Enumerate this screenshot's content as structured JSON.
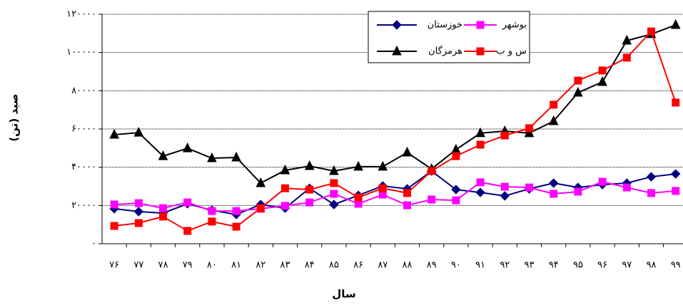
{
  "chart_data": {
    "type": "line",
    "x_label": "سال",
    "y_label": "صید (تن)",
    "categories": [
      "۷۶",
      "۷۷",
      "۷۸",
      "۷۹",
      "۸۰",
      "۸۱",
      "۸۲",
      "۸۳",
      "۸۴",
      "۸۵",
      "۸۶",
      "۸۷",
      "۸۸",
      "۸۹",
      "۹۰",
      "۹۱",
      "۹۲",
      "۹۳",
      "۹۴",
      "۹۵",
      "۹۶",
      "۹۷",
      "۹۸",
      "۹۹"
    ],
    "ylim": [
      0,
      120000
    ],
    "yticks": [
      {
        "value": 0,
        "label": "۰"
      },
      {
        "value": 20000,
        "label": "۲۰۰۰۰"
      },
      {
        "value": 40000,
        "label": "۴۰۰۰۰"
      },
      {
        "value": 60000,
        "label": "۶۰۰۰۰"
      },
      {
        "value": 80000,
        "label": "۸۰۰۰۰"
      },
      {
        "value": 100000,
        "label": "۱۰۰۰۰۰"
      },
      {
        "value": 120000,
        "label": "۱۲۰۰۰۰"
      }
    ],
    "grid": true,
    "series": [
      {
        "name": "خوزستان",
        "color": "#000080",
        "marker": "diamond",
        "values": [
          18300,
          16800,
          16000,
          20900,
          17500,
          15300,
          20500,
          18600,
          29000,
          20500,
          25300,
          30200,
          28700,
          38000,
          28300,
          26800,
          25000,
          28700,
          31700,
          29400,
          30900,
          31700,
          35000,
          36500
        ]
      },
      {
        "name": "بوشهر",
        "color": "#ff00ff",
        "marker": "square",
        "values": [
          20500,
          21200,
          18600,
          21600,
          17100,
          17100,
          18300,
          19800,
          21600,
          26100,
          20900,
          25700,
          20100,
          23100,
          22700,
          32100,
          29800,
          29400,
          26100,
          27200,
          32400,
          29400,
          26500,
          27600
        ]
      },
      {
        "name": "هرمزگان",
        "color": "#000000",
        "marker": "triangle",
        "values": [
          57000,
          58100,
          45800,
          49900,
          44700,
          45100,
          31700,
          38400,
          40600,
          38000,
          40300,
          40300,
          47700,
          39100,
          49200,
          57800,
          58900,
          57800,
          64100,
          79000,
          84600,
          106200,
          109600,
          114400
        ]
      },
      {
        "name": "س و ب",
        "color": "#ff0000",
        "marker": "square",
        "values": [
          9300,
          10800,
          14200,
          6700,
          11600,
          8900,
          18600,
          29000,
          28300,
          31700,
          24200,
          29000,
          26500,
          38000,
          45800,
          51800,
          56600,
          60400,
          72700,
          85300,
          90600,
          97300,
          111000,
          73800
        ]
      }
    ]
  }
}
